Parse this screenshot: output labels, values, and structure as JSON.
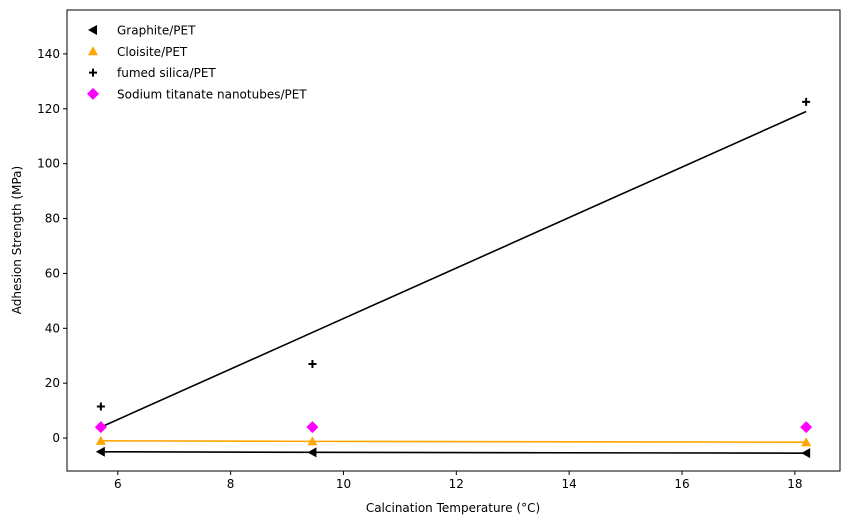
{
  "chart_data": {
    "type": "scatter",
    "title": "",
    "xlabel": "Calcination Temperature (°C)",
    "ylabel": "Adhesion Strength (MPa)",
    "xlim": [
      5.1,
      18.8
    ],
    "ylim": [
      -12,
      156
    ],
    "xticks": [
      6,
      8,
      10,
      12,
      14,
      16,
      18
    ],
    "yticks": [
      0,
      20,
      40,
      60,
      80,
      100,
      120,
      140
    ],
    "grid": false,
    "legend_position": "top-left",
    "x": [
      5.7,
      9.45,
      18.2
    ],
    "series": [
      {
        "name": "Graphite/PET",
        "marker": "triangle-left",
        "color": "#000000",
        "values": [
          -5,
          -5.2,
          -5.5
        ],
        "fit": {
          "color": "#000000",
          "values": [
            -5,
            -5.2,
            -5.5
          ]
        }
      },
      {
        "name": "Cloisite/PET",
        "marker": "triangle-up",
        "color": "#ffa500",
        "values": [
          -1,
          -1.2,
          -1.5
        ],
        "fit": {
          "color": "#ffa500",
          "values": [
            -1,
            -1.2,
            -1.5
          ]
        }
      },
      {
        "name": "fumed silica/PET",
        "marker": "plus",
        "color": "#000000",
        "values": [
          11.5,
          27,
          122.5
        ],
        "fit": {
          "color": "#000000",
          "values": [
            4,
            38.5,
            119
          ]
        }
      },
      {
        "name": "Sodium titanate nanotubes/PET",
        "marker": "diamond",
        "color": "#ff00ff",
        "values": [
          4,
          4,
          4
        ],
        "fit": null
      }
    ]
  }
}
